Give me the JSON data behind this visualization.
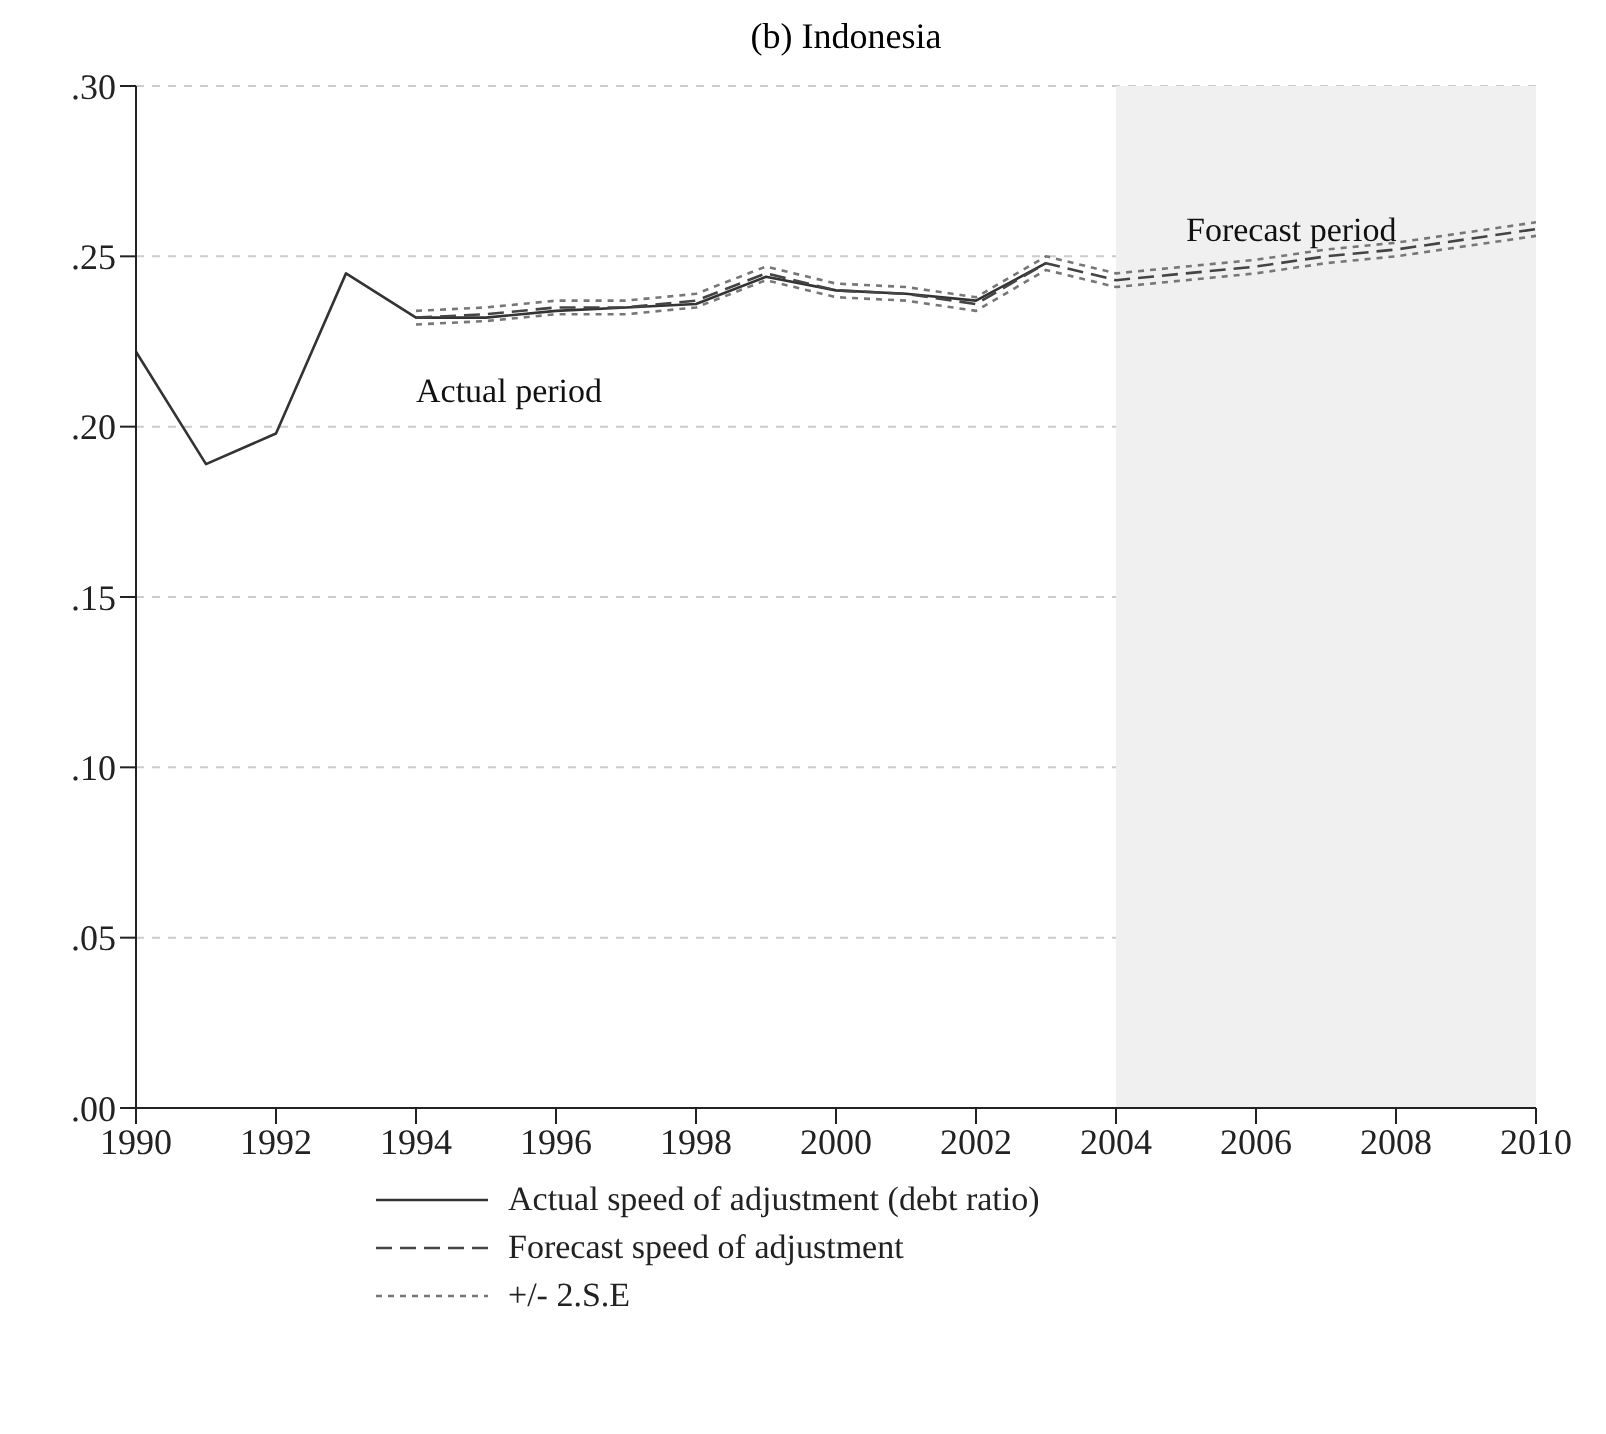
{
  "chart_data": {
    "type": "line",
    "title": "(b) Indonesia",
    "x": [
      1990,
      1991,
      1992,
      1993,
      1994,
      1995,
      1996,
      1997,
      1998,
      1999,
      2000,
      2001,
      2002,
      2003,
      2004,
      2005,
      2006,
      2007,
      2008,
      2009,
      2010
    ],
    "series": [
      {
        "name": "Actual speed of adjustment (debt ratio)",
        "color": "#333333",
        "line_style": "solid",
        "values": [
          0.222,
          0.189,
          0.198,
          0.245,
          0.232,
          0.232,
          0.234,
          0.235,
          0.236,
          0.244,
          0.24,
          0.239,
          0.237,
          0.248,
          null,
          null,
          null,
          null,
          null,
          null,
          null
        ]
      },
      {
        "name": "Forecast speed of adjustment",
        "color": "#444444",
        "line_style": "dashed",
        "values": [
          null,
          null,
          null,
          null,
          0.232,
          0.233,
          0.235,
          0.235,
          0.237,
          0.245,
          0.24,
          0.239,
          0.236,
          0.248,
          0.243,
          0.245,
          0.247,
          0.25,
          0.252,
          0.255,
          0.258
        ]
      },
      {
        "name": "+/- 2.S.E",
        "color": "#777777",
        "line_style": "dotted",
        "values": [
          null,
          null,
          null,
          null,
          0.234,
          0.235,
          0.237,
          0.237,
          0.239,
          0.247,
          0.242,
          0.241,
          0.238,
          0.25,
          0.245,
          0.247,
          0.249,
          0.252,
          0.254,
          0.257,
          0.26
        ]
      },
      {
        "color": "#777777",
        "line_style": "dotted",
        "values": [
          null,
          null,
          null,
          null,
          0.23,
          0.231,
          0.233,
          0.233,
          0.235,
          0.243,
          0.238,
          0.237,
          0.234,
          0.246,
          0.241,
          0.243,
          0.245,
          0.248,
          0.25,
          0.253,
          0.256
        ]
      }
    ],
    "xlim": [
      1990,
      2010
    ],
    "xticks": [
      1990,
      1992,
      1994,
      1996,
      1998,
      2000,
      2002,
      2004,
      2006,
      2008,
      2010
    ],
    "ylim": [
      0,
      0.3
    ],
    "yticks": [
      {
        "value": 0,
        "label": ".00"
      },
      {
        "value": 0.05,
        "label": ".05"
      },
      {
        "value": 0.1,
        "label": ".10"
      },
      {
        "value": 0.15,
        "label": ".15"
      },
      {
        "value": 0.2,
        "label": ".20"
      },
      {
        "value": 0.25,
        "label": ".25"
      },
      {
        "value": 0.3,
        "label": ".30"
      }
    ],
    "grid": "y",
    "legend": "bottom",
    "marker": "none",
    "bands": [
      {
        "axis": "x",
        "from": 2004,
        "to": 2010,
        "color": "#f0f0f0"
      }
    ],
    "annotations": [
      {
        "text": "Actual period",
        "x": 1994,
        "y": 0.232
      },
      {
        "text": "Forecast period",
        "x": 2005,
        "y": 0.245
      }
    ]
  }
}
